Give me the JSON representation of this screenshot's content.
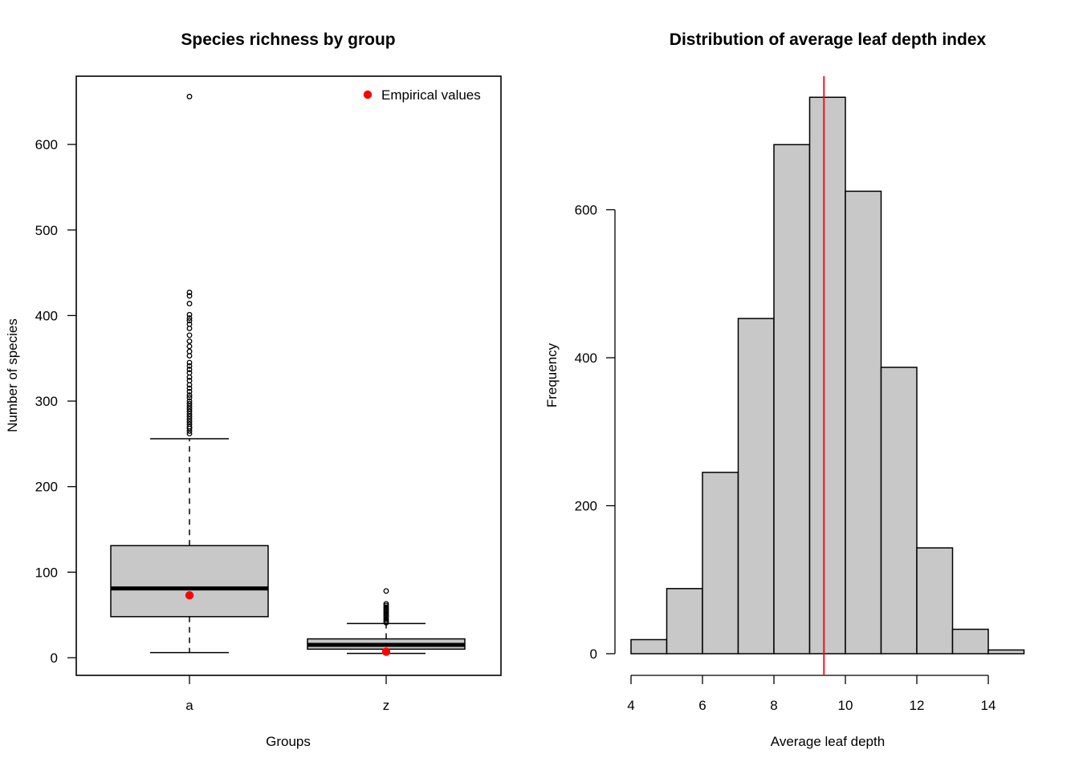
{
  "chart_data": [
    {
      "type": "boxplot",
      "title": "Species richness by group",
      "xlabel": "Groups",
      "ylabel": "Number of species",
      "ylim": [
        -20,
        680
      ],
      "yticks": [
        0,
        100,
        200,
        300,
        400,
        500,
        600
      ],
      "ytick_labels": [
        "0",
        "100",
        "200",
        "300",
        "400",
        "500",
        "600"
      ],
      "legend": {
        "label": "Empirical values",
        "color": "#ff0000",
        "placement": "top-right"
      },
      "box_fill": "#c8c8c8",
      "groups": [
        {
          "name": "a",
          "whisker_low": 6,
          "q1": 48,
          "median": 81,
          "q3": 131,
          "whisker_high": 256,
          "empirical": 73,
          "outliers": [
            262,
            265,
            268,
            270,
            273,
            276,
            279,
            282,
            285,
            288,
            291,
            294,
            297,
            300,
            304,
            307,
            311,
            315,
            319,
            324,
            328,
            333,
            337,
            341,
            345,
            353,
            358,
            364,
            370,
            377,
            385,
            390,
            394,
            397,
            401,
            414,
            423,
            427,
            656
          ]
        },
        {
          "name": "z",
          "whisker_low": 5,
          "q1": 10,
          "median": 15,
          "q3": 22,
          "whisker_high": 40,
          "empirical": 7,
          "outliers": [
            41,
            43,
            45,
            47,
            49,
            51,
            53,
            55,
            57,
            59,
            61,
            63,
            78
          ]
        }
      ]
    },
    {
      "type": "histogram",
      "title": "Distribution of average leaf depth index",
      "xlabel": "Average leaf depth",
      "ylabel": "Frequency",
      "xlim": [
        4,
        15
      ],
      "xticks": [
        4,
        6,
        8,
        10,
        12,
        14
      ],
      "xtick_labels": [
        "4",
        "6",
        "8",
        "10",
        "12",
        "14"
      ],
      "yticks": [
        0,
        200,
        400,
        600
      ],
      "ytick_labels": [
        "0",
        "200",
        "400",
        "600"
      ],
      "bin_edges": [
        4,
        5,
        6,
        7,
        8,
        9,
        10,
        11,
        12,
        13,
        14,
        15
      ],
      "counts": [
        19,
        88,
        245,
        453,
        688,
        752,
        625,
        387,
        143,
        33,
        5
      ],
      "bar_fill": "#c8c8c8",
      "reference_line": {
        "x": 9.4,
        "color": "#ff0000"
      }
    }
  ]
}
